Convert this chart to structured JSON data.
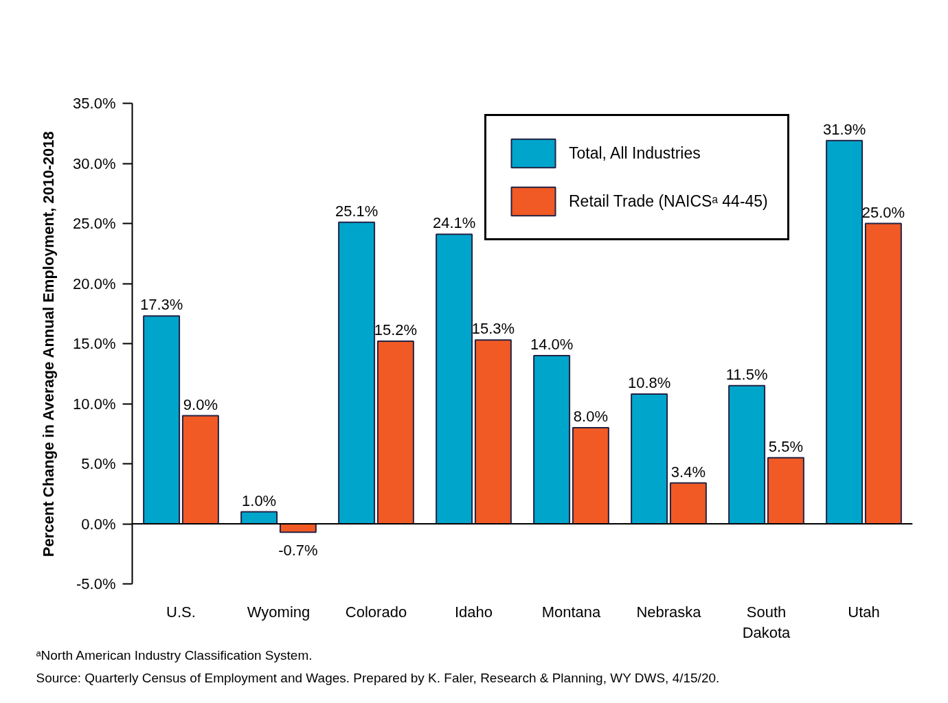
{
  "chart_data": {
    "type": "bar",
    "ylabel": "Percent Change in Average Annual Employment, 2010-2018",
    "categories": [
      "U.S.",
      "Wyoming",
      "Colorado",
      "Idaho",
      "Montana",
      "Nebraska",
      "South Dakota",
      "Utah"
    ],
    "series": [
      {
        "name": "Total, All Industries",
        "color": "#00a5cc",
        "values": [
          17.3,
          1.0,
          25.1,
          24.1,
          14.0,
          10.8,
          11.5,
          31.9
        ],
        "value_labels": [
          "17.3%",
          "1.0%",
          "25.1%",
          "24.1%",
          "14.0%",
          "10.8%",
          "11.5%",
          "31.9%"
        ]
      },
      {
        "name": "Retail Trade (NAICSᵃ 44-45)",
        "color": "#f15a24",
        "values": [
          9.0,
          -0.7,
          15.2,
          15.3,
          8.0,
          3.4,
          5.5,
          25.0
        ],
        "value_labels": [
          "9.0%",
          "-0.7%",
          "15.2%",
          "15.3%",
          "8.0%",
          "3.4%",
          "5.5%",
          "25.0%"
        ]
      }
    ],
    "ylim": [
      -5,
      35
    ],
    "yticks": [
      {
        "value": -5,
        "label": "-5.0%"
      },
      {
        "value": 0,
        "label": "0.0%"
      },
      {
        "value": 5,
        "label": "5.0%"
      },
      {
        "value": 10,
        "label": "10.0%"
      },
      {
        "value": 15,
        "label": "15.0%"
      },
      {
        "value": 20,
        "label": "20.0%"
      },
      {
        "value": 25,
        "label": "25.0%"
      },
      {
        "value": 30,
        "label": "30.0%"
      },
      {
        "value": 35,
        "label": "35.0%"
      }
    ],
    "ref_lines": [
      {
        "axis": "y",
        "value": 0,
        "color": "#000000",
        "line_style": "solid"
      }
    ],
    "grid": false,
    "legend": "top",
    "annotations": [
      "ᵃNorth American Industry Classification System.",
      "Source: Quarterly Census of Employment and Wages. Prepared by K. Faler, Research & Planning, WY DWS, 4/15/20."
    ]
  }
}
